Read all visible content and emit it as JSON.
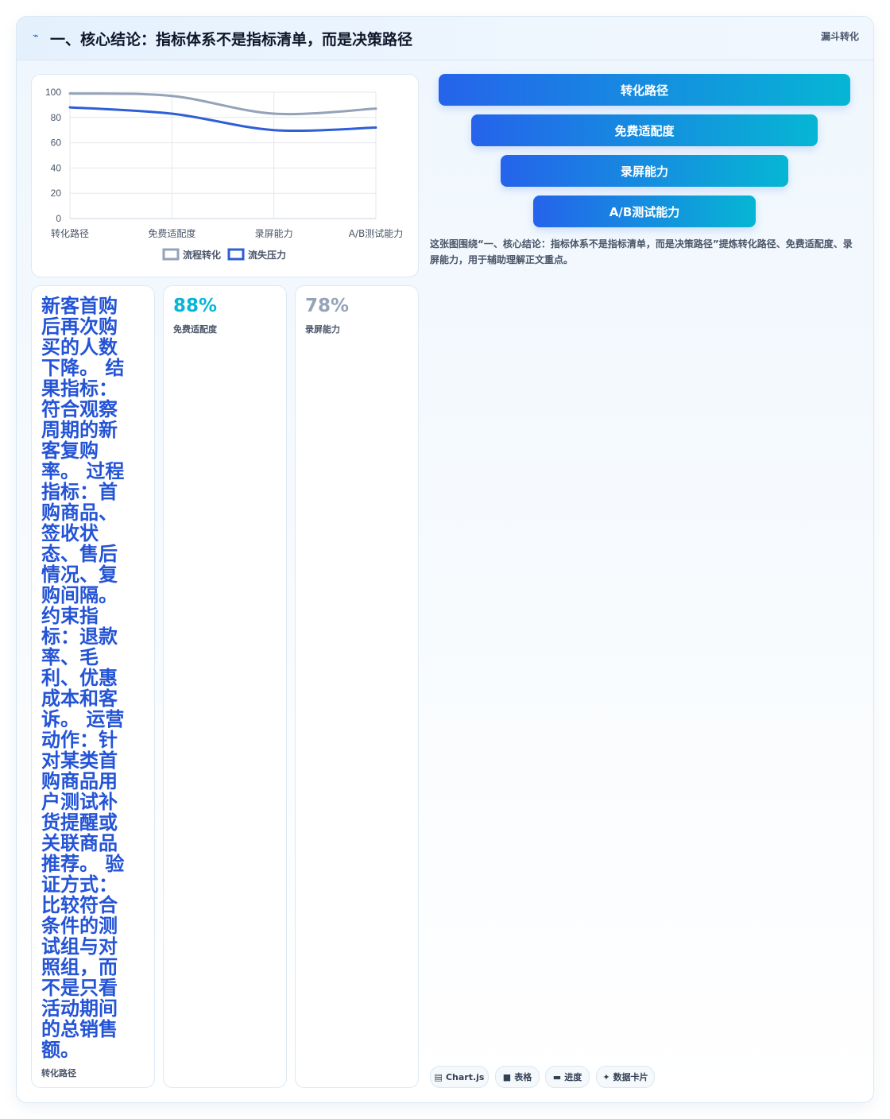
{
  "header": {
    "icon": "lightning-icon",
    "title": "一、核心结论：指标体系不是指标清单，而是决策路径",
    "tag": "漏斗转化"
  },
  "chart_data": {
    "type": "line",
    "categories": [
      "转化路径",
      "免费适配度",
      "录屏能力",
      "A/B测试能力"
    ],
    "series": [
      {
        "name": "流程转化",
        "values": [
          99,
          97,
          83,
          87
        ],
        "color": "#94a3b8"
      },
      {
        "name": "流失压力",
        "values": [
          88,
          83,
          70,
          72
        ],
        "color": "#2f5fd6"
      }
    ],
    "ylim": [
      0,
      100
    ],
    "yticks": [
      0,
      20,
      40,
      60,
      80,
      100
    ],
    "grid": true,
    "legend": "bottom"
  },
  "funnel": {
    "items": [
      "转化路径",
      "免费适配度",
      "录屏能力",
      "A/B测试能力"
    ]
  },
  "caption": "这张图围绕“一、核心结论：指标体系不是指标清单，而是决策路径”提炼转化路径、免费适配度、录屏能力，用于辅助理解正文重点。",
  "cards": [
    {
      "value": "新客首购后再次购买的人数下降。 结果指标：符合观察周期的新客复购率。 过程指标：首购商品、签收状态、售后情况、复购间隔。 约束指标：退款率、毛利、优惠成本和客诉。 运营动作：针对某类首购商品用户测试补货提醒或关联商品推荐。 验证方式：比较符合条件的测试组与对照组，而不是只看活动期间的总销售额。",
      "label": "转化路径"
    },
    {
      "value": "88%",
      "label": "免费适配度",
      "color": "#06b6d4"
    },
    {
      "value": "78%",
      "label": "录屏能力",
      "color": "#94a3b8"
    }
  ],
  "pills": [
    {
      "icon": "chart-icon",
      "glyph": "▤",
      "label": "Chart.js"
    },
    {
      "icon": "table-icon",
      "glyph": "■",
      "label": "表格"
    },
    {
      "icon": "progress-icon",
      "glyph": "▬",
      "label": "进度"
    },
    {
      "icon": "sparkle-icon",
      "glyph": "✦",
      "label": "数据卡片"
    }
  ]
}
